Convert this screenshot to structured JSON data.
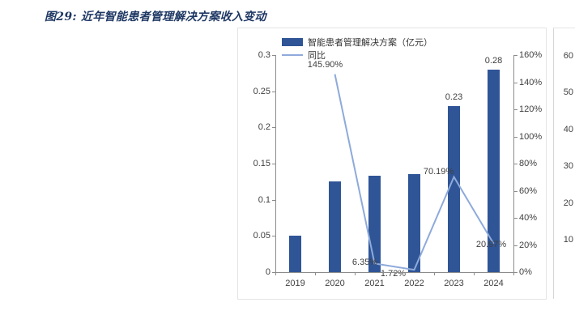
{
  "title": "图29: 近年智能患者管理解决方案收入变动",
  "chart_data": {
    "type": "bar",
    "combo": "bar+line",
    "title": "图29: 近年智能患者管理解决方案收入变动",
    "categories": [
      "2019",
      "2020",
      "2021",
      "2022",
      "2023",
      "2024"
    ],
    "series": [
      {
        "name": "智能患者管理解决方案（亿元）",
        "type": "bar",
        "axis": "left",
        "color": "#2F5597",
        "values": [
          0.05,
          0.125,
          0.133,
          0.135,
          0.23,
          0.28
        ],
        "labels": [
          null,
          null,
          null,
          null,
          "0.23",
          "0.28"
        ]
      },
      {
        "name": "同比",
        "type": "line",
        "axis": "right",
        "color": "#8EAADB",
        "values": [
          null,
          145.9,
          6.35,
          1.72,
          70.19,
          20.97
        ],
        "labels": [
          null,
          "145.90%",
          "6.35%",
          "1.72%",
          "70.19%",
          "20.97%"
        ]
      }
    ],
    "left_axis": {
      "min": 0,
      "max": 0.3,
      "ticks": [
        "0",
        "0.05",
        "0.1",
        "0.15",
        "0.2",
        "0.25",
        "0.3"
      ]
    },
    "right_axis": {
      "min": 0,
      "max": 160,
      "ticks": [
        "0%",
        "20%",
        "40%",
        "60%",
        "80%",
        "100%",
        "120%",
        "140%",
        "160%"
      ]
    },
    "legend_position": "top",
    "grid": false
  },
  "second_chart_partial": {
    "y_ticks": [
      "60",
      "50",
      "40",
      "30",
      "20",
      "10"
    ]
  },
  "colors": {
    "title_text": "#1F3864",
    "axis_text": "#404040",
    "bar": "#2F5597",
    "line": "#8EAADB"
  }
}
